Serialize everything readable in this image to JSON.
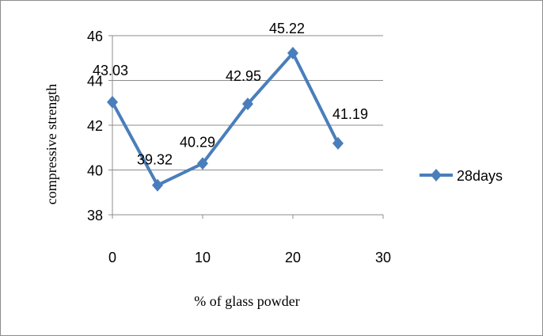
{
  "chart_data": {
    "type": "line",
    "title": "",
    "xlabel": "% of glass powder",
    "ylabel": "compressive strength",
    "xlim": [
      0,
      30
    ],
    "ylim": [
      38,
      46
    ],
    "xticks": [
      0,
      10,
      20,
      30
    ],
    "yticks": [
      38,
      40,
      42,
      44,
      46
    ],
    "grid": "horizontal",
    "legend_position": "right",
    "series": [
      {
        "name": "28days",
        "color": "#4a7ebb",
        "marker": "diamond",
        "x": [
          0,
          5,
          10,
          15,
          20,
          25
        ],
        "y": [
          43.03,
          39.32,
          40.29,
          42.95,
          45.22,
          41.19
        ],
        "labels": [
          "43.03",
          "39.32",
          "40.29",
          "42.95",
          "45.22",
          "41.19"
        ]
      }
    ]
  }
}
